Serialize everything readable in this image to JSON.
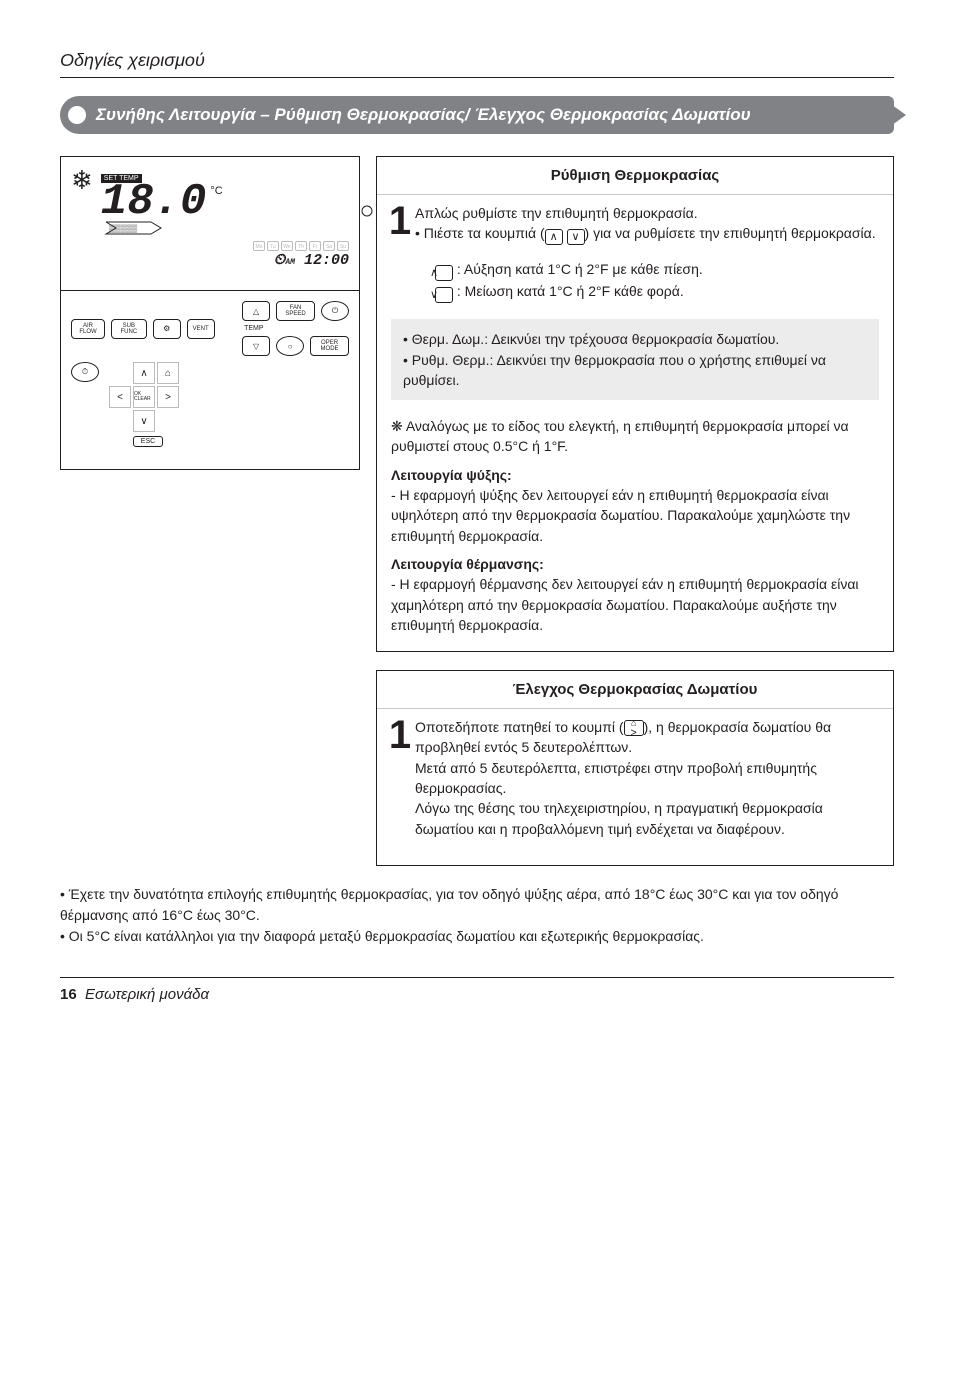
{
  "doc_header": "Οδηγίες χειρισμού",
  "banner": "Συνήθης Λειτουργία – Ρύθμιση Θερμοκρασίας/ Έλεγχος Θερμοκρασίας Δωματίου",
  "remote": {
    "settemp": "SET TEMP",
    "temp_value": "18.0",
    "unit": "°C",
    "clock_prefix": "AM",
    "clock_time": "12:00",
    "buttons": {
      "air_flow": "AIR FLOW",
      "sub_func": "SUB FUNC",
      "vent": "VENT",
      "fan_speed": "FAN SPEED",
      "temp": "TEMP",
      "ok_clear": "OK CLEAR",
      "oper_mode": "OPER MODE",
      "esc": "ESC"
    }
  },
  "panel1": {
    "title": "Ρύθμιση Θερμοκρασίας",
    "step_no": "1",
    "line1": "Απλώς ρυθμίστε την επιθυμητή θερμοκρασία.",
    "line2_pre": "• Πιέστε τα κουμπιά (",
    "line2_post": ") για να ρυθμίσετε την επιθυμητή θερμοκρασία.",
    "up_desc": " : Αύξηση κατά 1°C ή 2°F με κάθε πίεση.",
    "down_desc": " : Μείωση κατά 1°C ή 2°F κάθε φορά.",
    "gray1_a": "• Θερμ. Δωμ.: Δεικνύει την τρέχουσα θερμοκρασία δωματίου.",
    "gray1_b": "• Ρυθμ. Θερμ.: Δεικνύει την θερμοκρασία που ο χρήστης επιθυμεί να ρυθμίσει.",
    "note_flower": "❋ Αναλόγως με το είδος του ελεγκτή, η επιθυμητή θερμοκρασία μπορεί να ρυθμιστεί στους ",
    "note_values": "0.5°C ή 1°F.",
    "cool_h": "Λειτουργία ψύξης:",
    "cool_b": "- Η εφαρμογή ψύξης δεν λειτουργεί εάν η επιθυμητή θερμοκρασία είναι υψηλότερη από την θερμοκρασία δωματίου. Παρακαλούμε χαμηλώστε την επιθυμητή θερμοκρασία.",
    "heat_h": "Λειτουργία θέρμανσης:",
    "heat_b": "- Η εφαρμογή θέρμανσης δεν λειτουργεί εάν η επιθυμητή θερμοκρασία είναι χαμηλότερη από την θερμοκρασία δωματίου. Παρακαλούμε αυξήστε την επιθυμητή θερμοκρασία."
  },
  "panel2": {
    "title": "Έλεγχος Θερμοκρασίας Δωματίου",
    "step_no": "1",
    "body_pre": "Οποτεδήποτε πατηθεί το κουμπί (",
    "body_post": "), η θερμοκρασία δωματίου θα προβληθεί εντός 5 δευτερολέπτων.\nΜετά από 5 δευτερόλεπτα, επιστρέφει στην προβολή επιθυμητής θερμοκρασίας.\nΛόγω της θέσης του τηλεχειριστηρίου, η πραγματική θερμοκρασία δωματίου και η προβαλλόμενη τιμή ενδέχεται να διαφέρουν."
  },
  "footnotes": {
    "a": "• Έχετε την δυνατότητα επιλογής επιθυμητής θερμοκρασίας, για τον οδηγό ψύξης αέρα, από 18°C έως 30°C και για τον οδηγό θέρμανσης από 16°C έως 30°C.",
    "b": "• Οι 5°C είναι κατάλληλοι για την διαφορά μεταξύ θερμοκρασίας δωματίου και εξωτερικής θερμοκρασίας."
  },
  "footer": {
    "num": "16",
    "label": "Εσωτερική μονάδα"
  }
}
